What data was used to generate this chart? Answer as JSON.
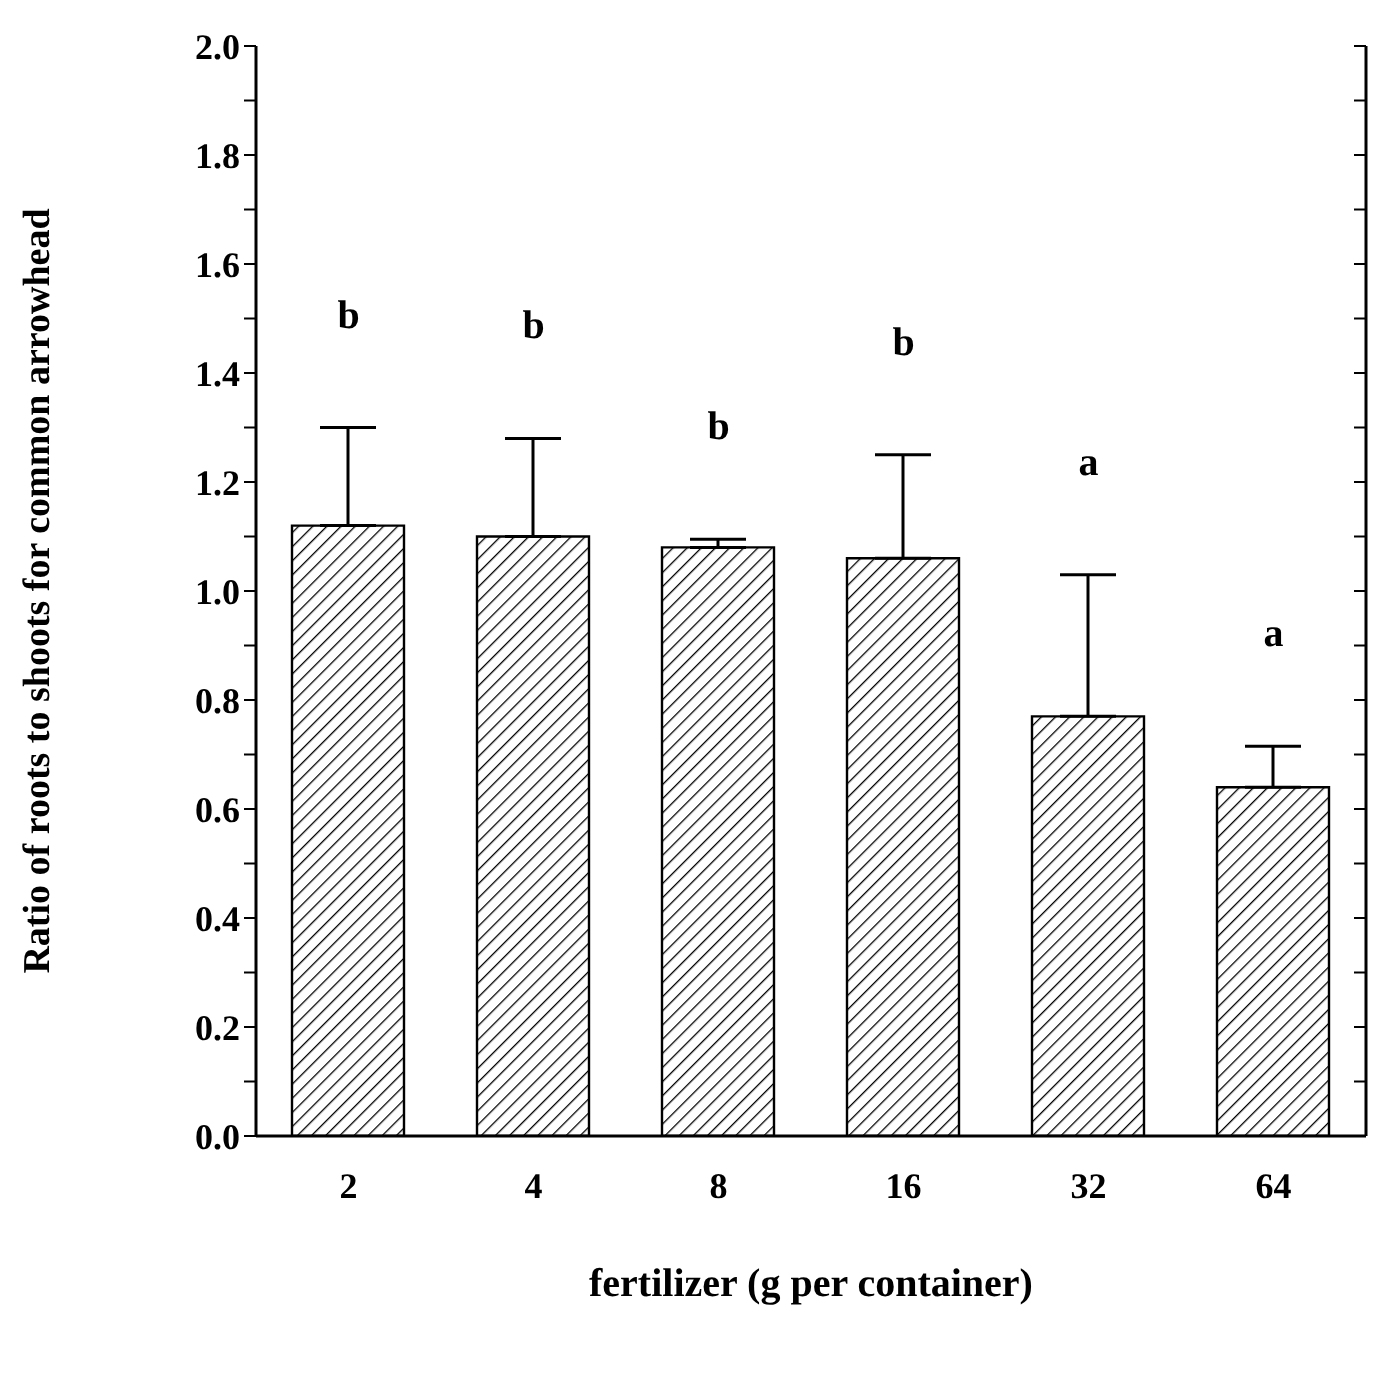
{
  "chart_data": {
    "type": "bar",
    "xlabel": "fertilizer (g per container)",
    "ylabel": "Ratio of roots to shoots for common arrowhead",
    "categories": [
      "2",
      "4",
      "8",
      "16",
      "32",
      "64"
    ],
    "values": [
      1.12,
      1.1,
      1.08,
      1.06,
      0.77,
      0.64
    ],
    "errors": [
      [
        1.12,
        1.3
      ],
      [
        1.1,
        1.28
      ],
      [
        1.08,
        1.095
      ],
      [
        1.06,
        1.25
      ],
      [
        0.77,
        1.03
      ],
      [
        0.64,
        0.715
      ]
    ],
    "color": "#000000",
    "ylim": [
      0,
      2
    ],
    "yticks": [
      {
        "value": 0,
        "label": "0.0"
      },
      {
        "value": 0.1,
        "label": null
      },
      {
        "value": 0.2,
        "label": "0.2"
      },
      {
        "value": 0.3,
        "label": null
      },
      {
        "value": 0.4,
        "label": "0.4"
      },
      {
        "value": 0.5,
        "label": null
      },
      {
        "value": 0.6,
        "label": "0.6"
      },
      {
        "value": 0.7,
        "label": null
      },
      {
        "value": 0.8,
        "label": "0.8"
      },
      {
        "value": 0.9,
        "label": null
      },
      {
        "value": 1,
        "label": "1.0"
      },
      {
        "value": 1.1,
        "label": null
      },
      {
        "value": 1.2,
        "label": "1.2"
      },
      {
        "value": 1.3,
        "label": null
      },
      {
        "value": 1.4,
        "label": "1.4"
      },
      {
        "value": 1.5,
        "label": null
      },
      {
        "value": 1.6,
        "label": "1.6"
      },
      {
        "value": 1.7,
        "label": null
      },
      {
        "value": 1.8,
        "label": "1.8"
      },
      {
        "value": 1.9,
        "label": null
      },
      {
        "value": 2,
        "label": "2.0"
      }
    ],
    "annotations": [
      "b",
      "b",
      "b",
      "b",
      "a",
      "a"
    ]
  }
}
